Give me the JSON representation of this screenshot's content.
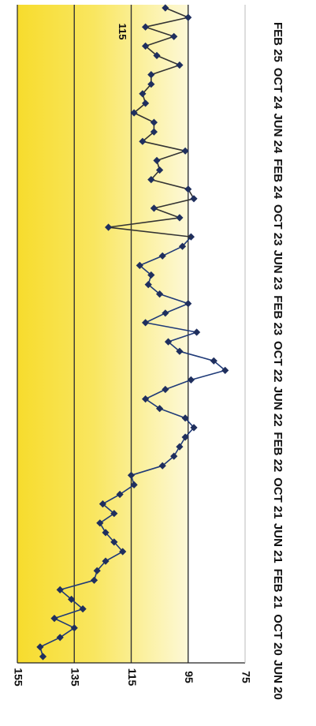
{
  "chart_data": {
    "type": "line",
    "title": "",
    "xlabel": "",
    "ylabel": "",
    "ylim": [
      75,
      155
    ],
    "yticks": [
      155,
      135,
      115,
      95,
      75
    ],
    "x_tick_labels": [
      "JUN 20",
      "OCT 20",
      "FEB 21",
      "JUN 21",
      "OCT 21",
      "FEB 22",
      "JUN 22",
      "OCT 22",
      "FEB 23",
      "JUN 23",
      "OCT 23",
      "FEB 24",
      "JUN 24",
      "OCT 24",
      "FEB 25"
    ],
    "reference_lines": [
      135,
      115,
      95
    ],
    "annotations": [
      {
        "text": "115"
      }
    ],
    "grid": false,
    "legend": "none",
    "colors": {
      "line_before": "#1f3a78",
      "line_after": "#333333",
      "marker": "#1f2f5e",
      "band_top": "#f8e23a",
      "band_mid": "#fbf29c",
      "band_low": "#fdf8d4",
      "reference_line": "#333333"
    },
    "series": [
      {
        "values": [
          146,
          147,
          140,
          135,
          142,
          132,
          136,
          140,
          128,
          127,
          124,
          118,
          121,
          124,
          126,
          121,
          125,
          119,
          114,
          115,
          104,
          100,
          98,
          96,
          93,
          96,
          105,
          110,
          103,
          94,
          82,
          86,
          98,
          102,
          92,
          110,
          103,
          95,
          105,
          109,
          108,
          112,
          104,
          97,
          94
        ]
      },
      {
        "values": [
          123,
          98,
          107,
          93,
          95,
          108,
          105,
          106,
          96,
          111,
          107,
          107,
          114,
          110,
          111,
          108,
          108,
          98,
          106,
          110,
          100,
          110,
          95,
          103
        ]
      }
    ]
  }
}
